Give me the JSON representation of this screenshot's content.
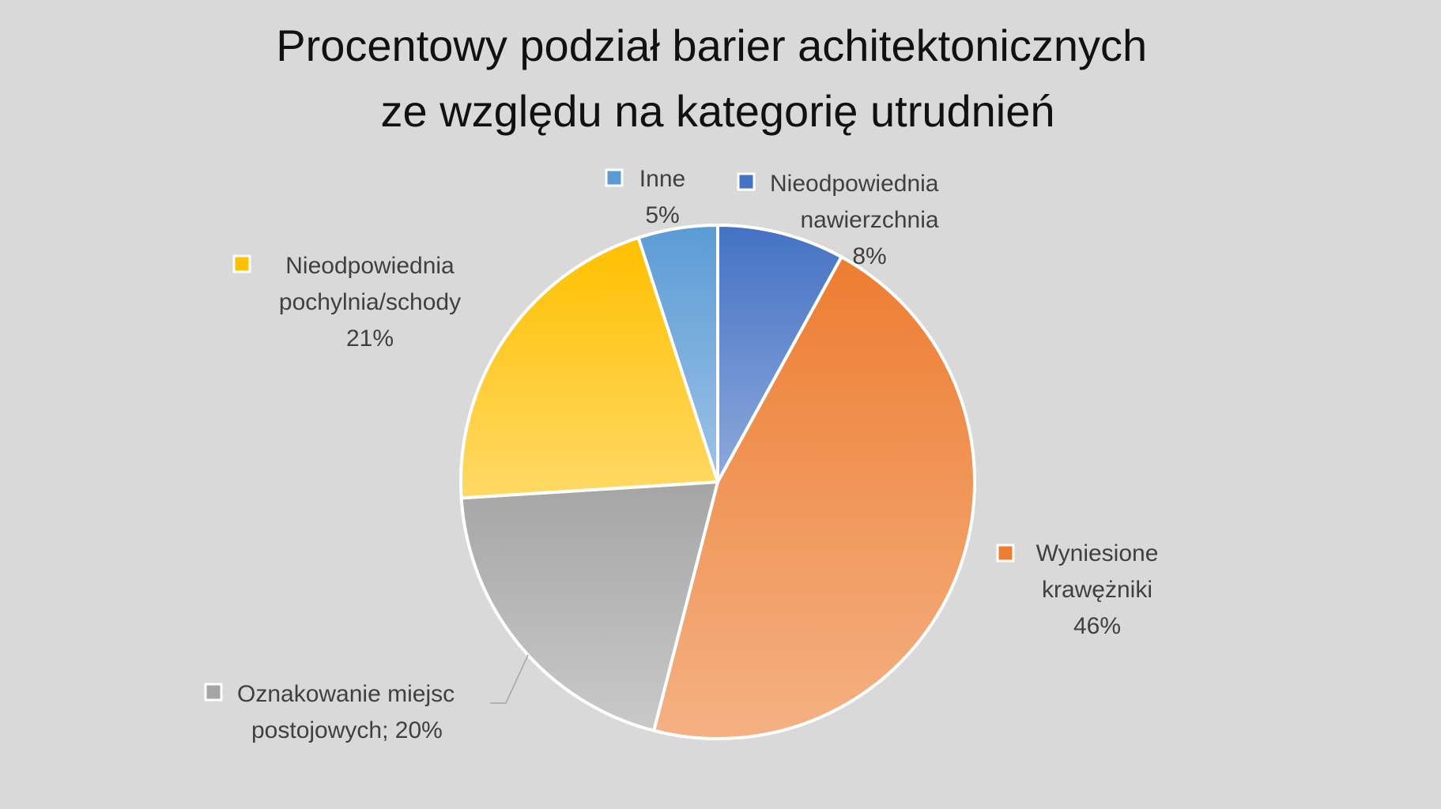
{
  "chart_data": {
    "type": "pie",
    "title_lines": [
      "Procentowy podział barier achitektonicznych",
      "ze względu na kategorię utrudnień"
    ],
    "slices": [
      {
        "key": "nawierzchnia",
        "label_lines": [
          "Nieodpowiednia",
          "nawierzchnia",
          "8%"
        ],
        "value": 8,
        "color": "#4472C4",
        "color_light": "#8EA9DB"
      },
      {
        "key": "krawezniki",
        "label_lines": [
          "Wyniesione",
          "krawężniki",
          "46%"
        ],
        "value": 46,
        "color": "#ED7D31",
        "color_light": "#F4B183"
      },
      {
        "key": "oznakowanie",
        "label_lines": [
          "Oznakowanie miejsc",
          "postojowych; 20%"
        ],
        "value": 20,
        "color": "#A5A5A5",
        "color_light": "#C9C9C9"
      },
      {
        "key": "pochylnia",
        "label_lines": [
          "Nieodpowiednia",
          "pochylnia/schody",
          "21%"
        ],
        "value": 21,
        "color": "#FFC000",
        "color_light": "#FFD966"
      },
      {
        "key": "inne",
        "label_lines": [
          "Inne",
          "5%"
        ],
        "value": 5,
        "color": "#5B9BD5",
        "color_light": "#9DC3E6"
      }
    ]
  }
}
